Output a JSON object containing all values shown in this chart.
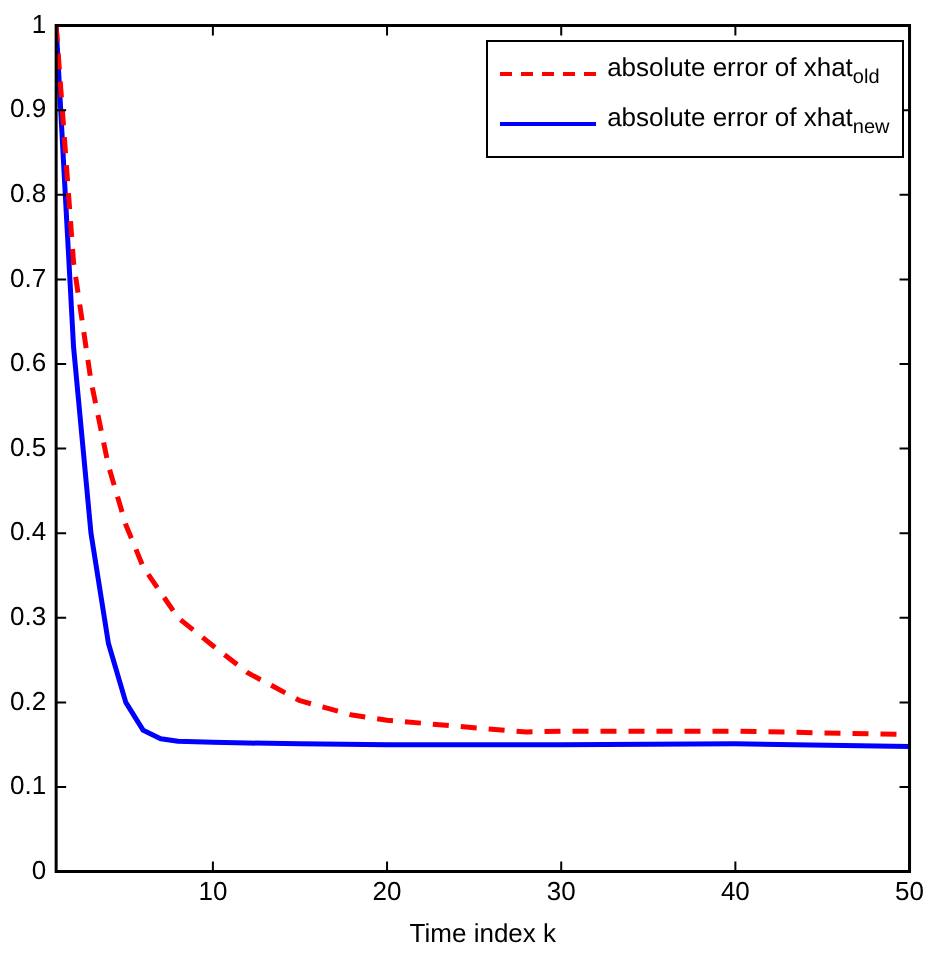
{
  "chart_data": {
    "type": "line",
    "xlabel": "Time index k",
    "xlim": [
      1,
      50
    ],
    "xticks": [
      10,
      20,
      30,
      40,
      50
    ],
    "ylim": [
      0,
      1
    ],
    "yticks": [
      0,
      0.1,
      0.2,
      0.3,
      0.4,
      0.5,
      0.6,
      0.7,
      0.8,
      0.9,
      1
    ],
    "grid": false,
    "legend": "top right",
    "marker": "none",
    "series": [
      {
        "name": "absolute error of xhat$_{old}$",
        "color": "#ff0000",
        "line_style": "dashed",
        "x": [
          1,
          2,
          3,
          4,
          5,
          6,
          7,
          8,
          10,
          12,
          15,
          18,
          20,
          25,
          28,
          30,
          40,
          50
        ],
        "values": [
          1.0,
          0.72,
          0.58,
          0.48,
          0.41,
          0.36,
          0.33,
          0.3,
          0.267,
          0.235,
          0.202,
          0.185,
          0.179,
          0.17,
          0.165,
          0.166,
          0.166,
          0.162
        ]
      },
      {
        "name": "absolute error of xhat$_{new}$",
        "color": "#0000ff",
        "line_style": "solid",
        "x": [
          1,
          2,
          3,
          4,
          5,
          6,
          7,
          8,
          10,
          12,
          15,
          20,
          30,
          40,
          50
        ],
        "values": [
          1.0,
          0.62,
          0.4,
          0.27,
          0.2,
          0.167,
          0.157,
          0.154,
          0.153,
          0.152,
          0.151,
          0.15,
          0.15,
          0.151,
          0.148
        ]
      }
    ]
  }
}
